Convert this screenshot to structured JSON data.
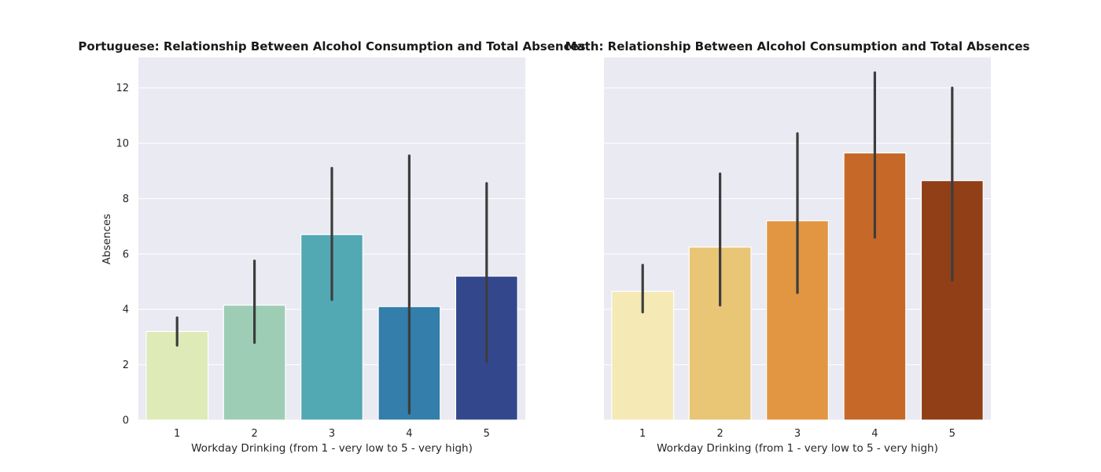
{
  "chart_data": [
    {
      "type": "bar",
      "title": "Portuguese: Relationship Between Alcohol Consumption and Total Absences",
      "xlabel": "Workday Drinking (from 1 - very low to 5 - very high)",
      "ylabel": "Absences",
      "categories": [
        "1",
        "2",
        "3",
        "4",
        "5"
      ],
      "values": [
        3.2,
        4.15,
        6.7,
        4.1,
        5.2
      ],
      "error_low": [
        2.7,
        2.8,
        4.35,
        0.25,
        2.1
      ],
      "error_high": [
        3.7,
        5.75,
        9.1,
        9.55,
        8.55
      ],
      "colors": [
        "#deebb8",
        "#9ecdb6",
        "#52a9b4",
        "#337eaa",
        "#33488c"
      ],
      "ylim": [
        0,
        13.1
      ],
      "yticks": [
        0,
        2,
        4,
        6,
        8,
        10,
        12
      ],
      "grid": true
    },
    {
      "type": "bar",
      "title": "Math: Relationship Between Alcohol Consumption and Total Absences",
      "xlabel": "Workday Drinking (from 1 - very low to 5 - very high)",
      "ylabel": "",
      "categories": [
        "1",
        "2",
        "3",
        "4",
        "5"
      ],
      "values": [
        4.65,
        6.25,
        7.2,
        9.65,
        8.65
      ],
      "error_low": [
        3.9,
        4.15,
        4.6,
        6.6,
        5.05
      ],
      "error_high": [
        5.6,
        8.9,
        10.35,
        12.55,
        12.0
      ],
      "colors": [
        "#f5e9b6",
        "#e8c675",
        "#e29641",
        "#c66928",
        "#913f16"
      ],
      "ylim": [
        0,
        13.1
      ],
      "yticks": [
        0,
        2,
        4,
        6,
        8,
        10,
        12
      ],
      "grid": true
    }
  ],
  "style": {
    "plot_background": "#eaeaf2",
    "grid_color": "#ffffff",
    "errorbar_color": "#3d3d3d"
  }
}
